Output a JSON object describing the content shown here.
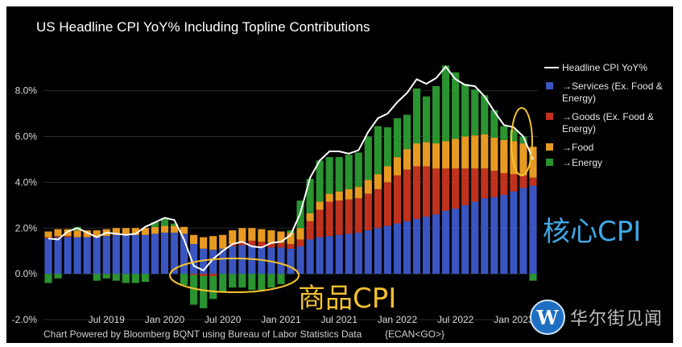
{
  "chart_data": {
    "type": "bar",
    "title": "US Headline CPI YoY% Including Topline Contributions",
    "source": "Chart Powered by Bloomberg BQNT using Bureau of Labor Statistics Data",
    "source_code": "{ECAN<GO>}",
    "xlabel": "",
    "ylabel": "",
    "ylim": [
      -2.0,
      9.5
    ],
    "y_ticks": [
      {
        "value": -2.0,
        "label": "-2.0%"
      },
      {
        "value": 0.0,
        "label": "0.0%"
      },
      {
        "value": 2.0,
        "label": "2.0%"
      },
      {
        "value": 4.0,
        "label": "4.0%"
      },
      {
        "value": 6.0,
        "label": "6.0%"
      },
      {
        "value": 8.0,
        "label": "8.0%"
      }
    ],
    "x_ticks": [
      {
        "index": 6,
        "label": "Jul 2019"
      },
      {
        "index": 12,
        "label": "Jan 2020"
      },
      {
        "index": 18,
        "label": "Jul 2020"
      },
      {
        "index": 24,
        "label": "Jan 2021"
      },
      {
        "index": 30,
        "label": "Jul 2021"
      },
      {
        "index": 36,
        "label": "Jan 2022"
      },
      {
        "index": 42,
        "label": "Jul 2022"
      },
      {
        "index": 48,
        "label": "Jan 2023"
      }
    ],
    "categories": [
      "2019-01",
      "2019-02",
      "2019-03",
      "2019-04",
      "2019-05",
      "2019-06",
      "2019-07",
      "2019-08",
      "2019-09",
      "2019-10",
      "2019-11",
      "2019-12",
      "2020-01",
      "2020-02",
      "2020-03",
      "2020-04",
      "2020-05",
      "2020-06",
      "2020-07",
      "2020-08",
      "2020-09",
      "2020-10",
      "2020-11",
      "2020-12",
      "2021-01",
      "2021-02",
      "2021-03",
      "2021-04",
      "2021-05",
      "2021-06",
      "2021-07",
      "2021-08",
      "2021-09",
      "2021-10",
      "2021-11",
      "2021-12",
      "2022-01",
      "2022-02",
      "2022-03",
      "2022-04",
      "2022-05",
      "2022-06",
      "2022-07",
      "2022-08",
      "2022-09",
      "2022-10",
      "2022-11",
      "2022-12",
      "2023-01",
      "2023-02",
      "2023-03"
    ],
    "series": [
      {
        "name": "Services (Ex. Food & Energy)",
        "color": "#3b55c0",
        "values": [
          1.55,
          1.6,
          1.6,
          1.6,
          1.6,
          1.6,
          1.65,
          1.7,
          1.7,
          1.7,
          1.7,
          1.75,
          1.8,
          1.8,
          1.75,
          1.3,
          1.1,
          1.05,
          1.1,
          1.2,
          1.25,
          1.25,
          1.2,
          1.15,
          1.15,
          1.1,
          1.2,
          1.5,
          1.6,
          1.65,
          1.7,
          1.75,
          1.8,
          1.9,
          2.0,
          2.1,
          2.2,
          2.3,
          2.4,
          2.5,
          2.6,
          2.75,
          2.85,
          3.0,
          3.15,
          3.3,
          3.35,
          3.45,
          3.6,
          3.75,
          3.85
        ]
      },
      {
        "name": "Goods (Ex. Food & Energy)",
        "color": "#c0321e",
        "values": [
          0.05,
          0.05,
          0.05,
          0.0,
          0.0,
          0.0,
          0.0,
          0.0,
          0.0,
          0.0,
          0.0,
          0.0,
          0.0,
          0.0,
          0.0,
          -0.05,
          -0.1,
          -0.1,
          0.0,
          0.1,
          0.15,
          0.2,
          0.2,
          0.2,
          0.2,
          0.2,
          0.3,
          0.8,
          1.2,
          1.5,
          1.5,
          1.5,
          1.5,
          1.6,
          1.7,
          1.9,
          2.1,
          2.25,
          2.3,
          2.2,
          2.0,
          1.85,
          1.75,
          1.6,
          1.45,
          1.3,
          1.15,
          0.95,
          0.75,
          0.55,
          0.35
        ]
      },
      {
        "name": "Food",
        "color": "#e79a22",
        "values": [
          0.25,
          0.3,
          0.3,
          0.3,
          0.3,
          0.3,
          0.3,
          0.3,
          0.3,
          0.3,
          0.3,
          0.3,
          0.3,
          0.3,
          0.3,
          0.4,
          0.5,
          0.6,
          0.6,
          0.6,
          0.6,
          0.55,
          0.55,
          0.55,
          0.5,
          0.5,
          0.5,
          0.35,
          0.35,
          0.35,
          0.4,
          0.45,
          0.5,
          0.6,
          0.65,
          0.7,
          0.8,
          0.9,
          1.0,
          1.05,
          1.1,
          1.2,
          1.3,
          1.4,
          1.45,
          1.5,
          1.45,
          1.45,
          1.45,
          1.4,
          1.35
        ]
      },
      {
        "name": "Energy",
        "color": "#2a9430",
        "values": [
          -0.4,
          -0.2,
          0.0,
          0.15,
          0.0,
          -0.3,
          -0.2,
          -0.3,
          -0.4,
          -0.4,
          -0.35,
          0.2,
          0.3,
          0.1,
          -0.5,
          -1.3,
          -1.4,
          -1.0,
          -0.8,
          -0.6,
          -0.6,
          -0.7,
          -0.75,
          -0.6,
          -0.45,
          0.1,
          1.2,
          1.5,
          1.8,
          1.6,
          1.5,
          1.5,
          1.5,
          1.9,
          2.1,
          1.7,
          1.7,
          1.5,
          2.4,
          2.0,
          2.5,
          3.3,
          2.9,
          2.3,
          2.0,
          1.7,
          1.2,
          0.6,
          0.5,
          0.3,
          -0.3
        ]
      }
    ],
    "line_series": {
      "name": "Headline CPI YoY%",
      "color": "#ffffff",
      "values": [
        1.55,
        1.5,
        1.85,
        2.0,
        1.8,
        1.6,
        1.8,
        1.75,
        1.7,
        1.75,
        2.05,
        2.25,
        2.45,
        2.35,
        1.5,
        0.35,
        0.15,
        0.65,
        1.0,
        1.3,
        1.4,
        1.2,
        1.15,
        1.35,
        1.4,
        1.7,
        2.65,
        4.2,
        4.95,
        5.35,
        5.35,
        5.25,
        5.4,
        6.2,
        6.8,
        7.0,
        7.5,
        7.9,
        8.5,
        8.3,
        8.55,
        9.05,
        8.5,
        8.25,
        8.2,
        7.75,
        7.1,
        6.5,
        6.4,
        6.0,
        5.0
      ]
    },
    "legend": {
      "placement": "right",
      "entries": [
        {
          "label": "Headline CPI YoY%",
          "kind": "line",
          "color": "#ffffff"
        },
        {
          "label": "Services (Ex. Food & Energy)",
          "kind": "box",
          "color": "#3b55c0"
        },
        {
          "label": "Goods (Ex. Food & Energy)",
          "kind": "box",
          "color": "#c0321e"
        },
        {
          "label": "Food",
          "kind": "box",
          "color": "#e79a22"
        },
        {
          "label": "Energy",
          "kind": "box",
          "color": "#2a9430"
        }
      ]
    }
  },
  "annotations": {
    "core_cpi": "核心CPI",
    "goods_cpi": "商品CPI",
    "core_color": "#3fa9e8",
    "goods_color": "#f2c12e"
  },
  "watermark": {
    "logo_letter": "W",
    "text": "华尔街见闻"
  }
}
